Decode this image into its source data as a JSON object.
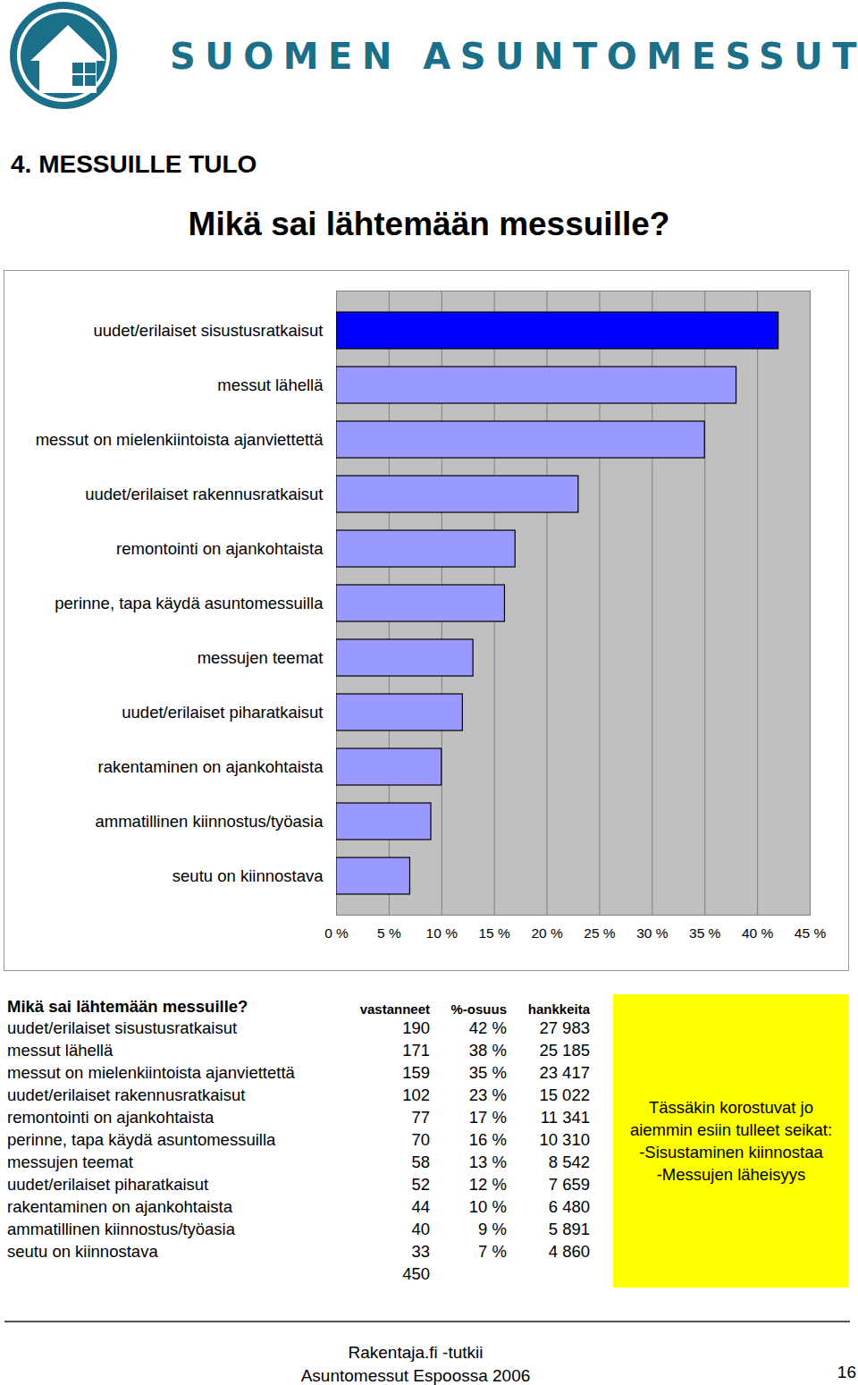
{
  "header": {
    "brand": "SUOMEN ASUNTOMESSUT"
  },
  "section": "4. MESSUILLE TULO",
  "chart_data": {
    "type": "bar",
    "orientation": "horizontal",
    "title": "Mikä sai lähtemään messuille?",
    "categories": [
      "uudet/erilaiset sisustusratkaisut",
      "messut lähellä",
      "messut on mielenkiintoista ajanviettettä",
      "uudet/erilaiset rakennusratkaisut",
      "remontointi on ajankohtaista",
      "perinne, tapa käydä asuntomessuilla",
      "messujen teemat",
      "uudet/erilaiset piharatkaisut",
      "rakentaminen on ajankohtaista",
      "ammatillinen kiinnostus/työasia",
      "seutu on kiinnostava"
    ],
    "values": [
      42,
      38,
      35,
      23,
      17,
      16,
      13,
      12,
      10,
      9,
      7
    ],
    "colors": [
      "#0000ff",
      "#9999ff",
      "#9999ff",
      "#9999ff",
      "#9999ff",
      "#9999ff",
      "#9999ff",
      "#9999ff",
      "#9999ff",
      "#9999ff",
      "#9999ff"
    ],
    "xlim": [
      0,
      45
    ],
    "xticks": [
      {
        "value": 0,
        "label": "0 %"
      },
      {
        "value": 5,
        "label": "5 %"
      },
      {
        "value": 10,
        "label": "10 %"
      },
      {
        "value": 15,
        "label": "15 %"
      },
      {
        "value": 20,
        "label": "20 %"
      },
      {
        "value": 25,
        "label": "25 %"
      },
      {
        "value": 30,
        "label": "30 %"
      },
      {
        "value": 35,
        "label": "35 %"
      },
      {
        "value": 40,
        "label": "40 %"
      },
      {
        "value": 45,
        "label": "45 %"
      }
    ],
    "grid": true
  },
  "table": {
    "header": [
      "Mikä sai lähtemään messuille?",
      "vastanneet",
      "%-osuus",
      "hankkeita"
    ],
    "rows": [
      [
        "uudet/erilaiset sisustusratkaisut",
        "190",
        "42 %",
        "27 983"
      ],
      [
        "messut lähellä",
        "171",
        "38 %",
        "25 185"
      ],
      [
        "messut on mielenkiintoista ajanviettettä",
        "159",
        "35 %",
        "23 417"
      ],
      [
        "uudet/erilaiset rakennusratkaisut",
        "102",
        "23 %",
        "15 022"
      ],
      [
        "remontointi on ajankohtaista",
        "77",
        "17 %",
        "11 341"
      ],
      [
        "perinne, tapa käydä asuntomessuilla",
        "70",
        "16 %",
        "10 310"
      ],
      [
        "messujen teemat",
        "58",
        "13 %",
        "8 542"
      ],
      [
        "uudet/erilaiset piharatkaisut",
        "52",
        "12 %",
        "7 659"
      ],
      [
        "rakentaminen on ajankohtaista",
        "44",
        "10 %",
        "6 480"
      ],
      [
        "ammatillinen kiinnostus/työasia",
        "40",
        "9 %",
        "5 891"
      ],
      [
        "seutu on kiinnostava",
        "33",
        "7 %",
        "4 860"
      ]
    ],
    "total": "450"
  },
  "note": [
    "Tässäkin korostuvat jo aiemmin esiin tulleet seikat:",
    "-Sisustaminen kiinnostaa",
    "-Messujen läheisyys"
  ],
  "footer": {
    "lines": [
      "Rakentaja.fi -tutkii",
      "Asuntomessut Espoossa 2006"
    ],
    "page": "16"
  }
}
